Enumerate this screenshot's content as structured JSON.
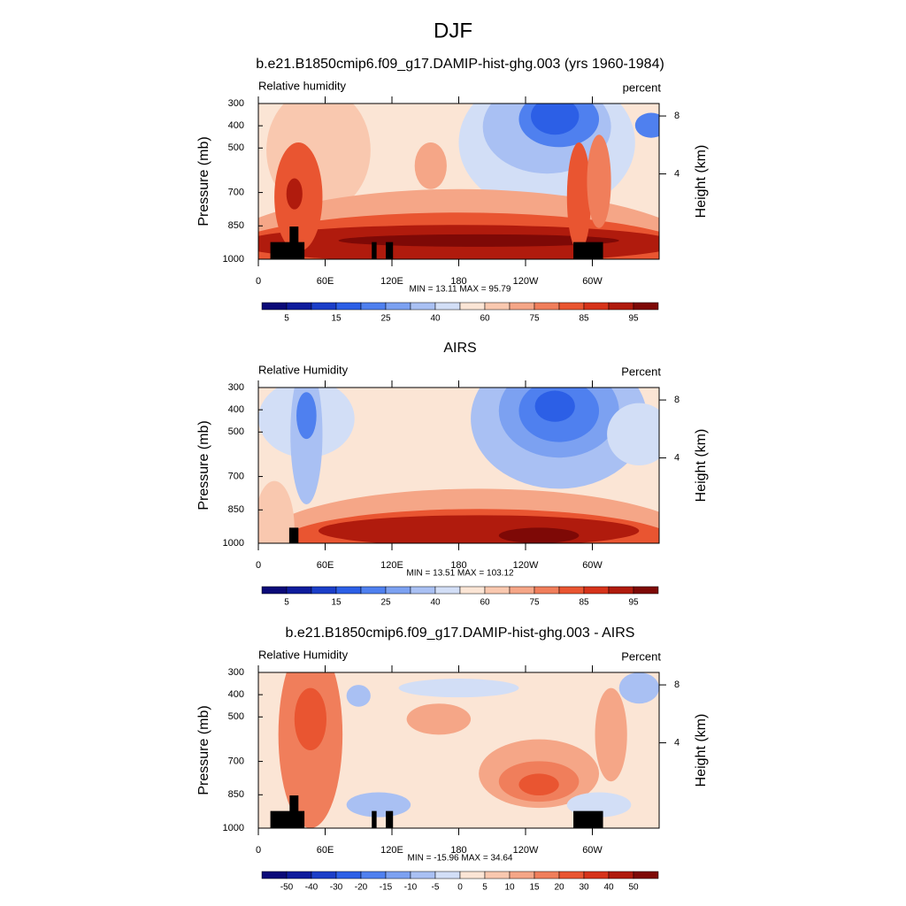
{
  "title": "DJF",
  "chart_data": [
    {
      "type": "contour",
      "title": "b.e21.B1850cmip6.f09_g17.DAMIP-hist-ghg.003 (yrs 1960-1984)",
      "left_label": "Relative humidity",
      "right_label": "percent",
      "y_label": "Pressure (mb)",
      "y2_label": "Height (km)",
      "xlim": [
        0,
        360
      ],
      "xticks": [
        0,
        {
          "value": 60,
          "label": "60E"
        },
        {
          "value": 120,
          "label": "120E"
        },
        180,
        {
          "value": 240,
          "label": "120W"
        },
        {
          "value": 300,
          "label": "60W"
        }
      ],
      "ylim": [
        1000,
        300
      ],
      "yticks": [
        300,
        400,
        500,
        700,
        850,
        1000
      ],
      "y2ticks": [
        8,
        4
      ],
      "stats": "MIN =  13.11  MAX =  95.79",
      "colorbar": {
        "colors": [
          "#0b0a78",
          "#0f1c9c",
          "#1b3ec8",
          "#2c5fe6",
          "#4f80ef",
          "#7ca1f1",
          "#a9c0f3",
          "#d2def6",
          "#fbe5d5",
          "#f9c8af",
          "#f5a687",
          "#f07e5b",
          "#e95531",
          "#d6331a",
          "#b01b0d",
          "#7e0906"
        ],
        "labels": [
          "5",
          "15",
          "25",
          "40",
          "60",
          "75",
          "85",
          "95"
        ]
      }
    },
    {
      "type": "contour",
      "title": "AIRS",
      "left_label": "Relative Humidity",
      "right_label": "Percent",
      "y_label": "Pressure (mb)",
      "y2_label": "Height (km)",
      "xlim": [
        0,
        360
      ],
      "xticks": [
        0,
        {
          "value": 60,
          "label": "60E"
        },
        {
          "value": 120,
          "label": "120E"
        },
        180,
        {
          "value": 240,
          "label": "120W"
        },
        {
          "value": 300,
          "label": "60W"
        }
      ],
      "ylim": [
        1000,
        300
      ],
      "yticks": [
        300,
        400,
        500,
        700,
        850,
        1000
      ],
      "y2ticks": [
        8,
        4
      ],
      "stats": "MIN =  13.51  MAX = 103.12",
      "colorbar": {
        "colors": [
          "#0b0a78",
          "#0f1c9c",
          "#1b3ec8",
          "#2c5fe6",
          "#4f80ef",
          "#7ca1f1",
          "#a9c0f3",
          "#d2def6",
          "#fbe5d5",
          "#f9c8af",
          "#f5a687",
          "#f07e5b",
          "#e95531",
          "#d6331a",
          "#b01b0d",
          "#7e0906"
        ],
        "labels": [
          "5",
          "15",
          "25",
          "40",
          "60",
          "75",
          "85",
          "95"
        ]
      }
    },
    {
      "type": "contour",
      "title": "b.e21.B1850cmip6.f09_g17.DAMIP-hist-ghg.003 - AIRS",
      "left_label": "Relative Humidity",
      "right_label": "Percent",
      "y_label": "Pressure (mb)",
      "y2_label": "Height (km)",
      "xlim": [
        0,
        360
      ],
      "xticks": [
        0,
        {
          "value": 60,
          "label": "60E"
        },
        {
          "value": 120,
          "label": "120E"
        },
        180,
        {
          "value": 240,
          "label": "120W"
        },
        {
          "value": 300,
          "label": "60W"
        }
      ],
      "ylim": [
        1000,
        300
      ],
      "yticks": [
        300,
        400,
        500,
        700,
        850,
        1000
      ],
      "y2ticks": [
        8,
        4
      ],
      "stats": "MIN = -15.96  MAX =  34.64",
      "colorbar": {
        "colors": [
          "#0b0a78",
          "#0f1c9c",
          "#1b3ec8",
          "#2c5fe6",
          "#4f80ef",
          "#7ca1f1",
          "#a9c0f3",
          "#d2def6",
          "#fbe5d5",
          "#f9c8af",
          "#f5a687",
          "#f07e5b",
          "#e95531",
          "#d6331a",
          "#b01b0d",
          "#7e0906"
        ],
        "labels": [
          "-50",
          "-40",
          "-30",
          "-20",
          "-15",
          "-10",
          "-5",
          "0",
          "5",
          "10",
          "15",
          "20",
          "30",
          "40",
          "50"
        ]
      }
    }
  ]
}
